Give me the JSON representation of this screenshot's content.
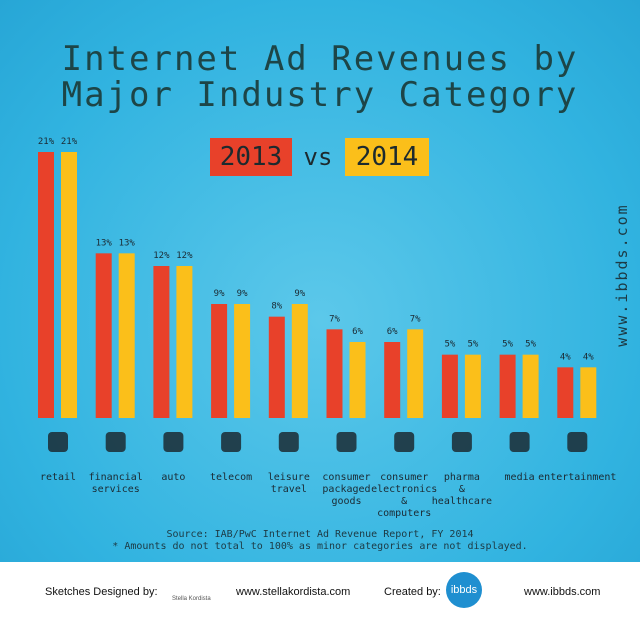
{
  "chart_data": {
    "type": "bar",
    "title_lines": [
      "Internet Ad Revenues by",
      "Major Industry Category"
    ],
    "legend_separator": "vs",
    "categories": [
      "retail",
      "financial\nservices",
      "auto",
      "telecom",
      "leisure\ntravel",
      "consumer\npackaged\ngoods",
      "consumer\nelectronics\n&\ncomputers",
      "pharma\n&\nhealthcare",
      "media",
      "entertainment"
    ],
    "series": [
      {
        "name": "2013",
        "color": "#e8412a",
        "values": [
          21,
          13,
          12,
          9,
          8,
          7,
          6,
          5,
          5,
          4
        ],
        "value_labels": [
          "21%",
          "13%",
          "12%",
          "9%",
          "8%",
          "7%",
          "6%",
          "5%",
          "5%",
          "4%"
        ]
      },
      {
        "name": "2014",
        "color": "#fbbf1a",
        "values": [
          21,
          13,
          12,
          9,
          9,
          6,
          7,
          5,
          5,
          4
        ],
        "value_labels": [
          "21%",
          "13%",
          "12%",
          "9%",
          "9%",
          "6%",
          "7%",
          "5%",
          "5%",
          "4%"
        ]
      }
    ],
    "source": "Source: IAB/PwC Internet Ad Revenue Report, FY 2014",
    "note": "* Amounts do not total to 100% as minor categories are not displayed."
  },
  "watermark": "www.ibbds.com",
  "footer": {
    "designed_label": "Sketches Designed by:",
    "designer_url": "www.stellakordista.com",
    "designer_logo": "Stella Kordista",
    "created_label": "Created by:",
    "creator_logo": "ibbds",
    "creator_url": "www.ibbds.com"
  }
}
